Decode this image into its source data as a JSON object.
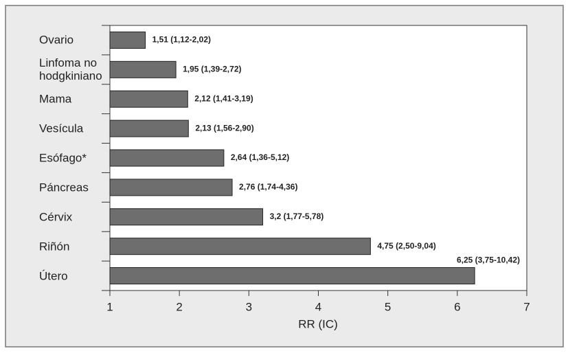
{
  "chart_data": {
    "type": "bar",
    "orientation": "horizontal",
    "categories": [
      "Ovario",
      "Linfoma no hodgkiniano",
      "Mama",
      "Vesícula",
      "Esófago*",
      "Páncreas",
      "Cérvix",
      "Riñón",
      "Útero"
    ],
    "values": [
      1.51,
      1.95,
      2.12,
      2.13,
      2.64,
      2.76,
      3.2,
      4.75,
      6.25
    ],
    "value_labels": [
      "1,51 (1,12-2,02)",
      "1,95 (1,39-2,72)",
      "2,12 (1,41-3,19)",
      "2,13 (1,56-2,90)",
      "2,64 (1,36-5,12)",
      "2,76 (1,74-4,36)",
      "3,2 (1,77-5,78)",
      "4,75 (2,50-9,04)",
      "6,25 (3,75-10,42)"
    ],
    "color": "#6e6e6e",
    "xlabel": "RR (IC)",
    "xlim": [
      1,
      7
    ],
    "xticks": [
      1,
      2,
      3,
      4,
      5,
      6,
      7
    ]
  }
}
